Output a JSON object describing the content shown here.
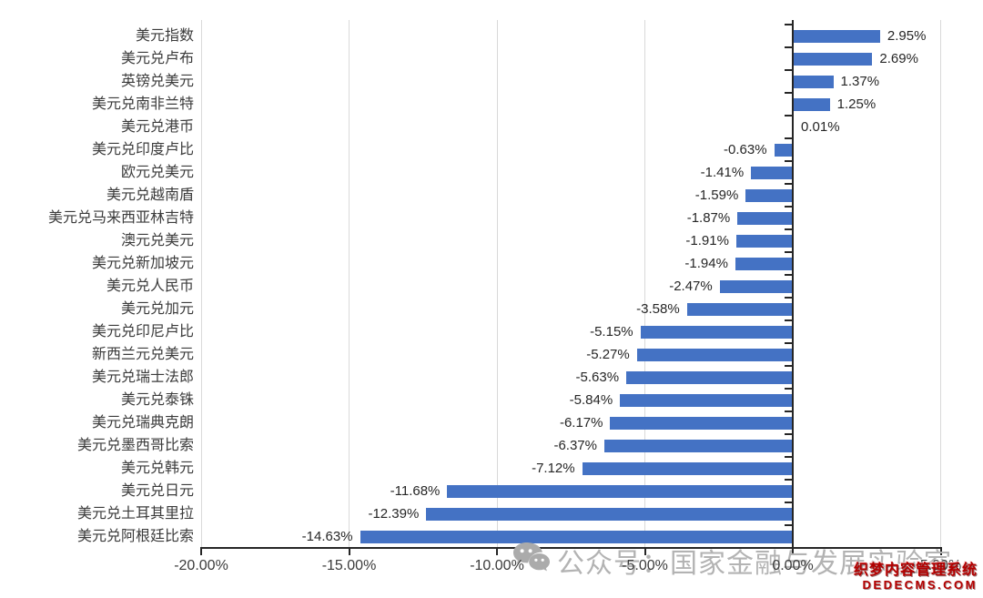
{
  "chart_data": {
    "type": "bar",
    "orientation": "horizontal",
    "title": "",
    "categories": [
      "美元指数",
      "美元兑卢布",
      "英镑兑美元",
      "美元兑南非兰特",
      "美元兑港币",
      "美元兑印度卢比",
      "欧元兑美元",
      "美元兑越南盾",
      "美元兑马来西亚林吉特",
      "澳元兑美元",
      "美元兑新加坡元",
      "美元兑人民币",
      "美元兑加元",
      "美元兑印尼卢比",
      "新西兰元兑美元",
      "美元兑瑞士法郎",
      "美元兑泰铢",
      "美元兑瑞典克朗",
      "美元兑墨西哥比索",
      "美元兑韩元",
      "美元兑日元",
      "美元兑土耳其里拉",
      "美元兑阿根廷比索"
    ],
    "values": [
      2.95,
      2.69,
      1.37,
      1.25,
      0.01,
      -0.63,
      -1.41,
      -1.59,
      -1.87,
      -1.91,
      -1.94,
      -2.47,
      -3.58,
      -5.15,
      -5.27,
      -5.63,
      -5.84,
      -6.17,
      -6.37,
      -7.12,
      -11.68,
      -12.39,
      -14.63
    ],
    "value_labels": [
      "2.95%",
      "2.69%",
      "1.37%",
      "1.25%",
      "0.01%",
      "-0.63%",
      "-1.41%",
      "-1.59%",
      "-1.87%",
      "-1.91%",
      "-1.94%",
      "-2.47%",
      "-3.58%",
      "-5.15%",
      "-5.27%",
      "-5.63%",
      "-5.84%",
      "-6.17%",
      "-6.37%",
      "-7.12%",
      "-11.68%",
      "-12.39%",
      "-14.63%"
    ],
    "x_ticks": {
      "values": [
        -20,
        -15,
        -10,
        -5,
        0,
        5
      ],
      "labels": [
        "-20.00%",
        "-15.00%",
        "-10.00%",
        "-5.00%",
        "0.00%",
        "5.00%"
      ]
    },
    "xlim": [
      -20,
      5
    ],
    "grid": true,
    "legend": "none",
    "bar_color": "#4472C4",
    "gridline_color": "#D9D9D9",
    "axis_color": "#262626"
  },
  "watermark": {
    "icon": "wechat-icon",
    "text": "公众号：国家金融与发展实验室",
    "color": "#B3B3B3"
  },
  "branding": {
    "line1": "织梦内容管理系统",
    "line2": "DEDECMS.COM",
    "color": "#B40000"
  }
}
